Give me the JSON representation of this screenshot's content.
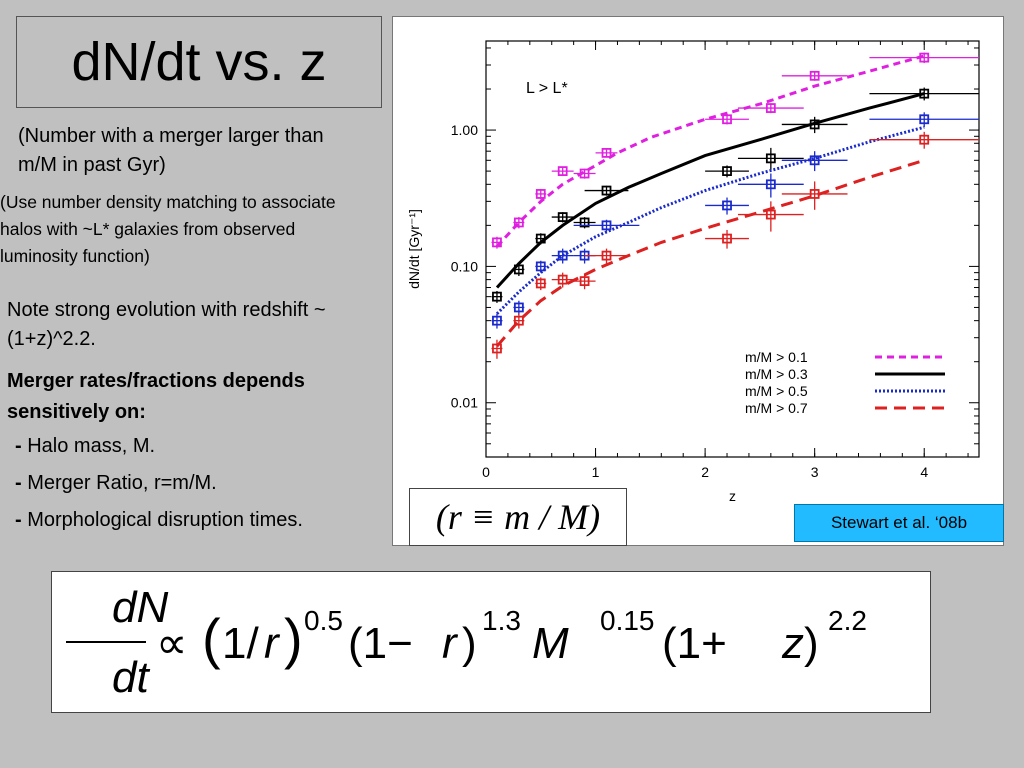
{
  "slide": {
    "title": "dN/dt vs. z",
    "note1": "(Number with a merger larger than m/M in past Gyr)",
    "note2": "(Use number density matching to associate halos with ~L* galaxies from observed luminosity function)",
    "note3": "Note strong evolution with redshift ~ (1+z)^2.2.",
    "depends_heading": "Merger rates/fractions depends sensitively on:",
    "bullets": [
      {
        "dash": "-",
        "text": "Halo mass, M."
      },
      {
        "dash": "-",
        "text": "Merger Ratio, r=m/M."
      },
      {
        "dash": "-",
        "text": "Morphological disruption times."
      }
    ],
    "relation": "(r ≡ m / M)",
    "citation": "Stewart et al. ‘08b",
    "formula": "dN/dt ∝ (1/r)^0.5 (1−r)^1.3 M^0.15 (1+z)^2.2"
  },
  "chart_data": {
    "type": "line",
    "xlabel": "z",
    "ylabel": "dN/dt  [Gyr⁻¹]",
    "annotation": "L > L*",
    "xlim": [
      0,
      4.5
    ],
    "ylim": [
      0.004,
      4.5
    ],
    "yscale": "log",
    "xticks": [
      "0",
      "1",
      "2",
      "3",
      "4"
    ],
    "yticks": [
      "0.01",
      "0.10",
      "1.00"
    ],
    "legend_position": "bottom-right",
    "series": [
      {
        "name": "m/M > 0.1",
        "color": "#e020e0",
        "dash": "short-dash",
        "model": {
          "x": [
            0.1,
            0.3,
            0.5,
            0.7,
            0.85,
            1.0,
            1.2,
            1.5,
            2.0,
            2.5,
            3.0,
            3.5,
            4.0
          ],
          "y": [
            0.14,
            0.21,
            0.3,
            0.4,
            0.47,
            0.55,
            0.68,
            0.88,
            1.2,
            1.55,
            2.1,
            2.7,
            3.5
          ]
        },
        "points": [
          {
            "x": 0.1,
            "y": 0.15,
            "xerr": 0.05,
            "yerr": 0.015
          },
          {
            "x": 0.3,
            "y": 0.21,
            "xerr": 0.05,
            "yerr": 0.02
          },
          {
            "x": 0.5,
            "y": 0.34,
            "xerr": 0.05,
            "yerr": 0.03
          },
          {
            "x": 0.7,
            "y": 0.5,
            "xerr": 0.1,
            "yerr": 0.04
          },
          {
            "x": 0.9,
            "y": 0.48,
            "xerr": 0.1,
            "yerr": 0.04
          },
          {
            "x": 1.1,
            "y": 0.68,
            "xerr": 0.1,
            "yerr": 0.05
          },
          {
            "x": 2.2,
            "y": 1.2,
            "xerr": 0.2,
            "yerr": 0.1
          },
          {
            "x": 2.6,
            "y": 1.45,
            "xerr": 0.3,
            "yerr": 0.12
          },
          {
            "x": 3.0,
            "y": 2.5,
            "xerr": 0.3,
            "yerr": 0.2
          },
          {
            "x": 4.0,
            "y": 3.4,
            "xerr": 0.5,
            "yerr": 0.3
          }
        ]
      },
      {
        "name": "m/M > 0.3",
        "color": "#000000",
        "dash": "solid",
        "model": {
          "x": [
            0.1,
            0.3,
            0.5,
            0.7,
            1.0,
            1.3,
            1.6,
            2.0,
            2.5,
            3.0,
            3.5,
            4.0
          ],
          "y": [
            0.07,
            0.105,
            0.15,
            0.2,
            0.29,
            0.38,
            0.48,
            0.65,
            0.85,
            1.12,
            1.45,
            1.85
          ]
        },
        "points": [
          {
            "x": 0.1,
            "y": 0.06,
            "xerr": 0.05,
            "yerr": 0.006
          },
          {
            "x": 0.3,
            "y": 0.095,
            "xerr": 0.05,
            "yerr": 0.01
          },
          {
            "x": 0.5,
            "y": 0.16,
            "xerr": 0.05,
            "yerr": 0.015
          },
          {
            "x": 0.7,
            "y": 0.23,
            "xerr": 0.1,
            "yerr": 0.02
          },
          {
            "x": 0.9,
            "y": 0.21,
            "xerr": 0.1,
            "yerr": 0.02
          },
          {
            "x": 1.1,
            "y": 0.36,
            "xerr": 0.2,
            "yerr": 0.03
          },
          {
            "x": 2.2,
            "y": 0.5,
            "xerr": 0.2,
            "yerr": 0.05
          },
          {
            "x": 2.6,
            "y": 0.62,
            "xerr": 0.3,
            "yerr": 0.12
          },
          {
            "x": 3.0,
            "y": 1.1,
            "xerr": 0.3,
            "yerr": 0.15
          },
          {
            "x": 4.0,
            "y": 1.85,
            "xerr": 0.5,
            "yerr": 0.2
          }
        ]
      },
      {
        "name": "m/M > 0.5",
        "color": "#1a2acc",
        "dash": "dotted",
        "model": {
          "x": [
            0.1,
            0.3,
            0.5,
            0.7,
            1.0,
            1.3,
            1.6,
            2.0,
            2.5,
            3.0,
            3.5,
            4.0
          ],
          "y": [
            0.045,
            0.065,
            0.09,
            0.12,
            0.165,
            0.21,
            0.27,
            0.36,
            0.48,
            0.62,
            0.82,
            1.05
          ]
        },
        "points": [
          {
            "x": 0.1,
            "y": 0.04,
            "xerr": 0.05,
            "yerr": 0.005
          },
          {
            "x": 0.3,
            "y": 0.05,
            "xerr": 0.05,
            "yerr": 0.006
          },
          {
            "x": 0.5,
            "y": 0.1,
            "xerr": 0.05,
            "yerr": 0.01
          },
          {
            "x": 0.7,
            "y": 0.12,
            "xerr": 0.1,
            "yerr": 0.015
          },
          {
            "x": 0.9,
            "y": 0.12,
            "xerr": 0.1,
            "yerr": 0.015
          },
          {
            "x": 1.1,
            "y": 0.2,
            "xerr": 0.3,
            "yerr": 0.02
          },
          {
            "x": 2.2,
            "y": 0.28,
            "xerr": 0.2,
            "yerr": 0.04
          },
          {
            "x": 2.6,
            "y": 0.4,
            "xerr": 0.3,
            "yerr": 0.08
          },
          {
            "x": 3.0,
            "y": 0.6,
            "xerr": 0.3,
            "yerr": 0.1
          },
          {
            "x": 4.0,
            "y": 1.2,
            "xerr": 0.5,
            "yerr": 0.15
          }
        ]
      },
      {
        "name": "m/M > 0.7",
        "color": "#dd2020",
        "dash": "long-dash",
        "model": {
          "x": [
            0.1,
            0.3,
            0.5,
            0.7,
            1.0,
            1.3,
            1.6,
            2.0,
            2.5,
            3.0,
            3.5,
            4.0
          ],
          "y": [
            0.026,
            0.04,
            0.056,
            0.072,
            0.095,
            0.12,
            0.15,
            0.19,
            0.25,
            0.33,
            0.45,
            0.6
          ]
        },
        "points": [
          {
            "x": 0.1,
            "y": 0.025,
            "xerr": 0.05,
            "yerr": 0.004
          },
          {
            "x": 0.3,
            "y": 0.04,
            "xerr": 0.05,
            "yerr": 0.005
          },
          {
            "x": 0.5,
            "y": 0.075,
            "xerr": 0.05,
            "yerr": 0.008
          },
          {
            "x": 0.7,
            "y": 0.08,
            "xerr": 0.1,
            "yerr": 0.01
          },
          {
            "x": 0.9,
            "y": 0.078,
            "xerr": 0.1,
            "yerr": 0.01
          },
          {
            "x": 1.1,
            "y": 0.12,
            "xerr": 0.2,
            "yerr": 0.015
          },
          {
            "x": 2.2,
            "y": 0.16,
            "xerr": 0.2,
            "yerr": 0.025
          },
          {
            "x": 2.6,
            "y": 0.24,
            "xerr": 0.3,
            "yerr": 0.06
          },
          {
            "x": 3.0,
            "y": 0.34,
            "xerr": 0.3,
            "yerr": 0.08
          },
          {
            "x": 4.0,
            "y": 0.85,
            "xerr": 0.5,
            "yerr": 0.12
          }
        ]
      }
    ]
  }
}
